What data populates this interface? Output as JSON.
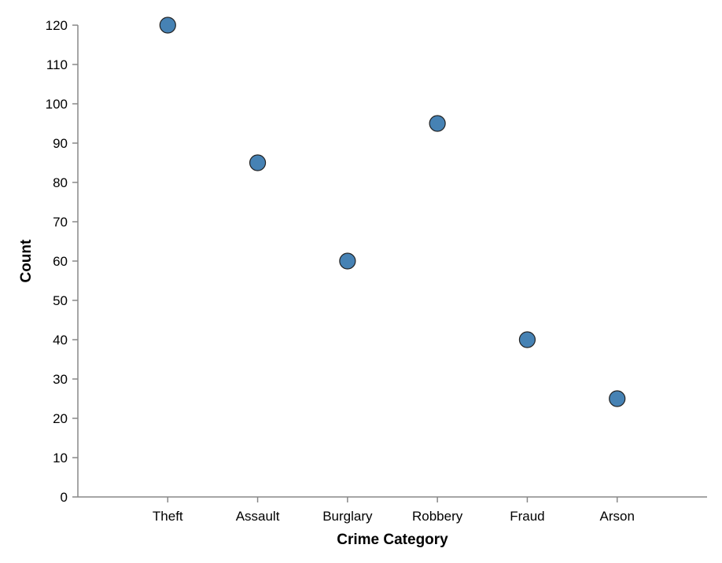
{
  "chart_data": {
    "type": "scatter",
    "title": "",
    "xlabel": "Crime Category",
    "ylabel": "Count",
    "categories": [
      "Theft",
      "Assault",
      "Burglary",
      "Robbery",
      "Fraud",
      "Arson"
    ],
    "values": [
      120,
      85,
      60,
      95,
      40,
      25
    ],
    "ylim": [
      0,
      120
    ],
    "yticks": [
      "0",
      "10",
      "20",
      "30",
      "40",
      "50",
      "60",
      "70",
      "80",
      "90",
      "100",
      "110",
      "120"
    ],
    "grid": false,
    "point_color": "#4682b4"
  }
}
